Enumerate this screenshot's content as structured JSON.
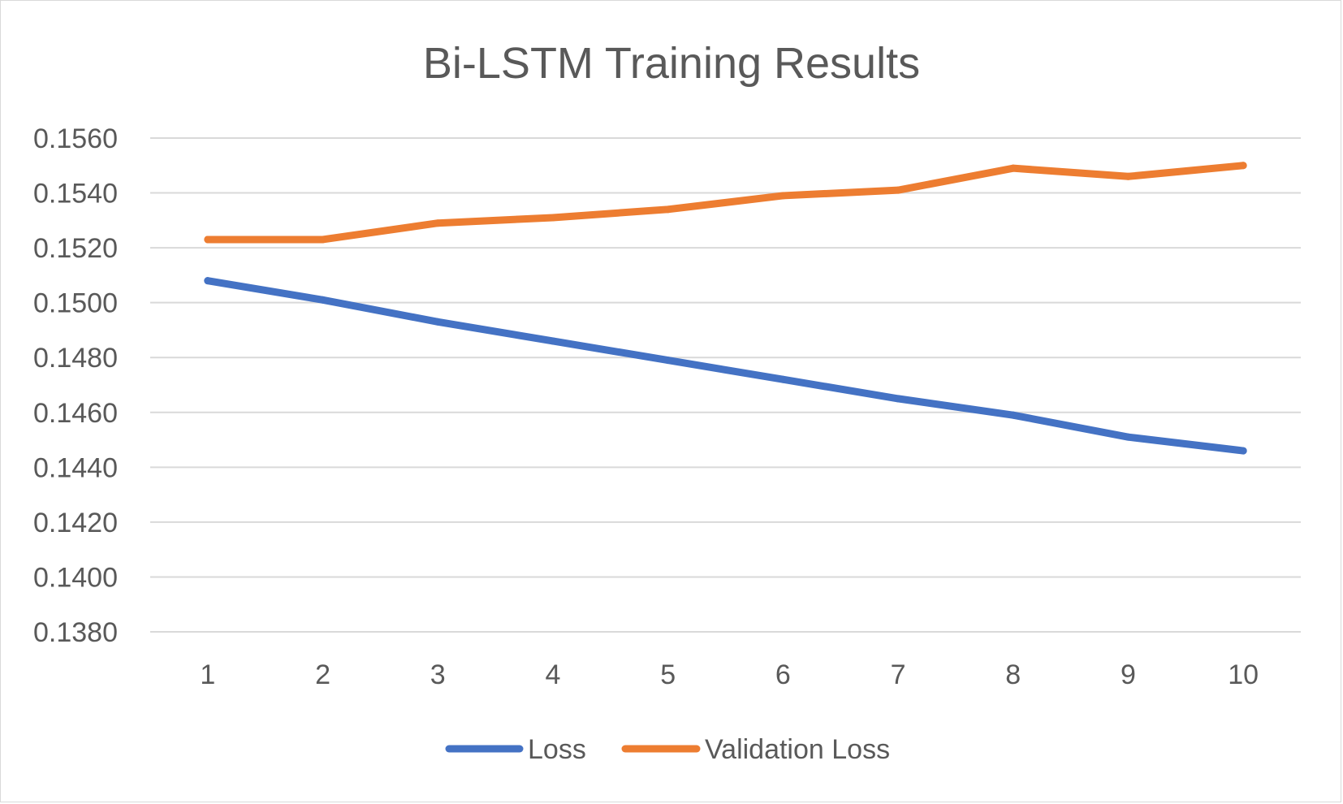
{
  "chart_data": {
    "type": "line",
    "title": "Bi-LSTM Training Results",
    "xlabel": "",
    "ylabel": "",
    "categories": [
      "1",
      "2",
      "3",
      "4",
      "5",
      "6",
      "7",
      "8",
      "9",
      "10"
    ],
    "y_ticks": [
      "0.1380",
      "0.1400",
      "0.1420",
      "0.1440",
      "0.1460",
      "0.1480",
      "0.1500",
      "0.1520",
      "0.1540",
      "0.1560"
    ],
    "ylim": [
      0.138,
      0.156
    ],
    "grid": true,
    "legend_position": "bottom",
    "series": [
      {
        "name": "Loss",
        "color": "#4472c4",
        "values": [
          0.1508,
          0.1501,
          0.1493,
          0.1486,
          0.1479,
          0.1472,
          0.1465,
          0.1459,
          0.1451,
          0.1446
        ]
      },
      {
        "name": "Validation Loss",
        "color": "#ed7d31",
        "values": [
          0.1523,
          0.1523,
          0.1529,
          0.1531,
          0.1534,
          0.1539,
          0.1541,
          0.1549,
          0.1546,
          0.155
        ]
      }
    ]
  }
}
